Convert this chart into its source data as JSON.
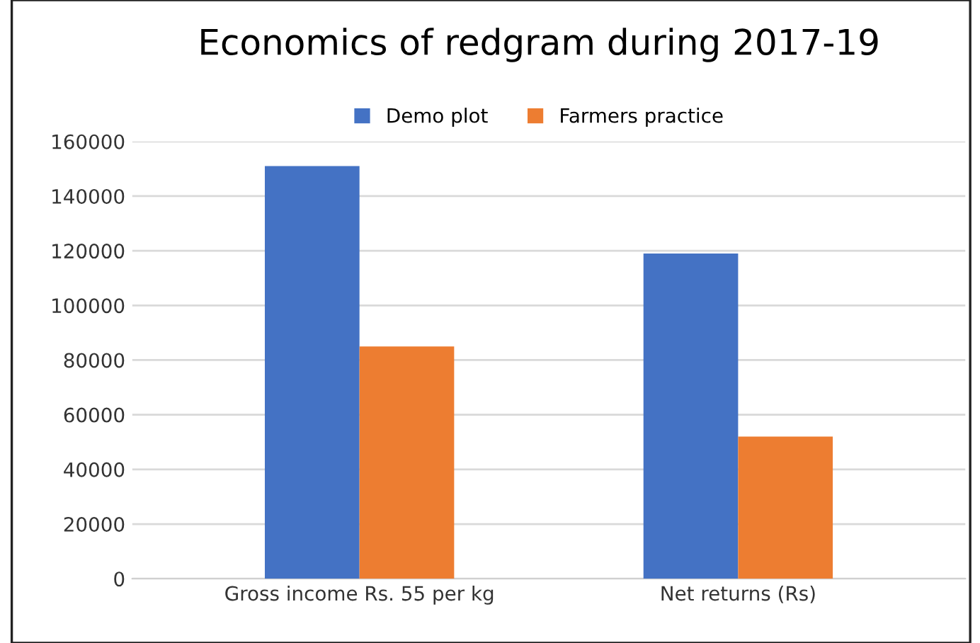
{
  "chart_data": {
    "type": "bar",
    "title": "Economics of redgram during 2017-19",
    "categories": [
      "Gross income Rs. 55 per kg",
      "Net returns (Rs)"
    ],
    "series": [
      {
        "name": "Demo plot",
        "color": "#4472c4",
        "values": [
          151000,
          119000
        ]
      },
      {
        "name": "Farmers practice",
        "color": "#ed7d31",
        "values": [
          85000,
          52000
        ]
      }
    ],
    "ylim": [
      0,
      160000
    ],
    "yticks": [
      0,
      20000,
      40000,
      60000,
      80000,
      100000,
      120000,
      140000,
      160000
    ],
    "grid": "y",
    "legend": "top"
  }
}
